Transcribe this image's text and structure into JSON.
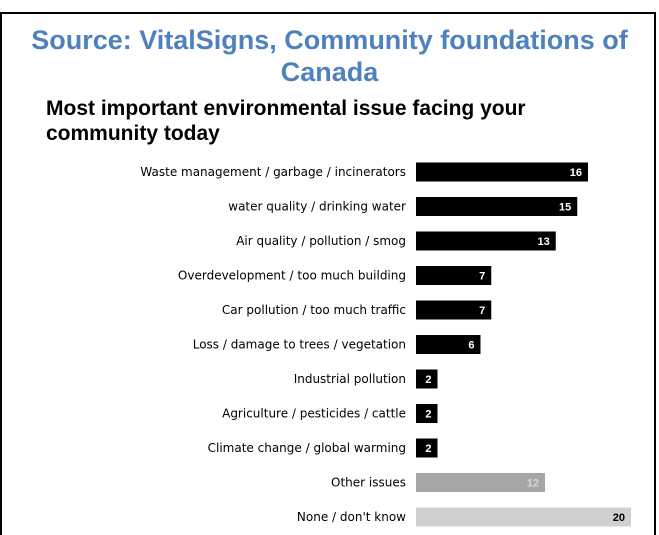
{
  "source": "Source: VitalSigns, Community foundations of Canada",
  "chart_data": {
    "type": "bar",
    "orientation": "horizontal",
    "title": "Most important environmental issue facing your community today",
    "categories": [
      "Waste management / garbage / incinerators",
      "water quality / drinking water",
      "Air quality / pollution / smog",
      "Overdevelopment / too much building",
      "Car pollution / too much traffic",
      "Loss / damage to trees / vegetation",
      "Industrial pollution",
      "Agriculture / pesticides / cattle",
      "Climate change / global warming",
      "Other issues",
      "None / don't know"
    ],
    "values": [
      16,
      15,
      13,
      7,
      7,
      6,
      2,
      2,
      2,
      12,
      20
    ],
    "bar_colors": [
      "#000000",
      "#000000",
      "#000000",
      "#000000",
      "#000000",
      "#000000",
      "#000000",
      "#000000",
      "#000000",
      "#a6a6a6",
      "#d0d0d0"
    ],
    "value_label_colors": [
      "#ffffff",
      "#ffffff",
      "#ffffff",
      "#ffffff",
      "#ffffff",
      "#ffffff",
      "#ffffff",
      "#ffffff",
      "#ffffff",
      "#d9d9d9",
      "#000000"
    ],
    "xlim": [
      0,
      20
    ]
  }
}
